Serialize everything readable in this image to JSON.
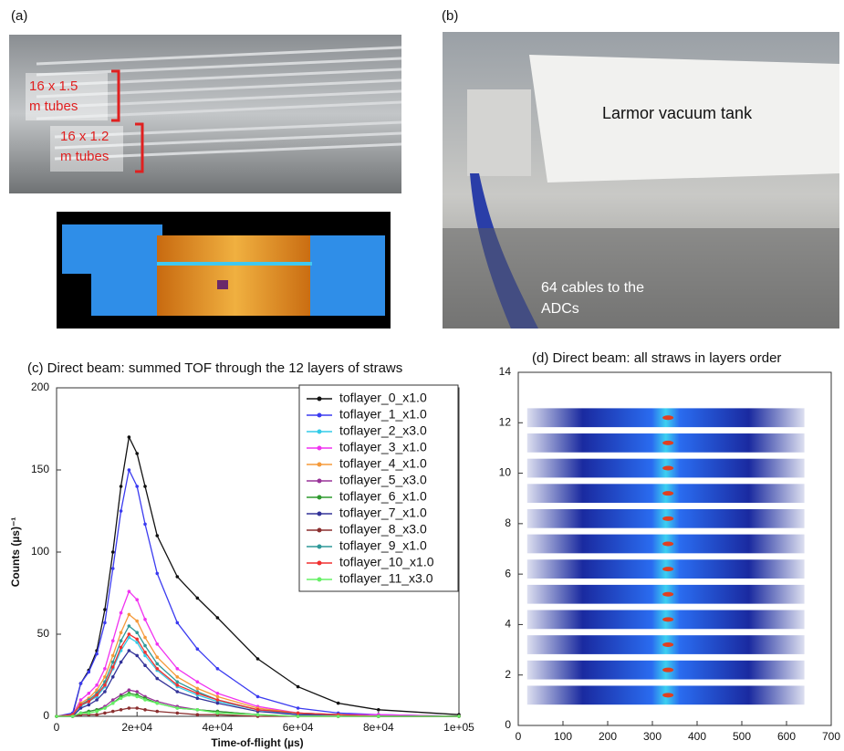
{
  "panel_a": {
    "label": "(a)",
    "upper_tubes": [
      "16 x 1.5",
      "m tubes"
    ],
    "lower_tubes": [
      "16 x 1.2",
      "m tubes"
    ]
  },
  "panel_b": {
    "label": "(b)",
    "tank": "Larmor vacuum tank",
    "cables": [
      "64 cables to the",
      "ADCs"
    ]
  },
  "chart_data": [
    {
      "type": "line",
      "title": "(c) Direct beam: summed TOF through the 12 layers of straws",
      "x_label": "Time-of-flight (µs)",
      "y_label": "Counts (µs)⁻¹",
      "x": [
        0,
        4000,
        6000,
        8000,
        10000,
        12000,
        14000,
        16000,
        18000,
        20000,
        22000,
        25000,
        30000,
        35000,
        40000,
        50000,
        60000,
        70000,
        80000,
        100000
      ],
      "xlim": [
        0,
        100000
      ],
      "xticks": [
        0,
        {
          "value": 20000,
          "label": "2e+04"
        },
        {
          "value": 40000,
          "label": "4e+04"
        },
        {
          "value": 60000,
          "label": "6e+04"
        },
        {
          "value": 80000,
          "label": "8e+04"
        },
        {
          "value": 100000,
          "label": "1e+05"
        }
      ],
      "ylim": [
        0,
        200
      ],
      "yticks": [
        0,
        50,
        100,
        150,
        200
      ],
      "series": [
        {
          "name": "toflayer_0_x1.0",
          "color": "#111111",
          "values": [
            0,
            1,
            20,
            28,
            40,
            65,
            100,
            140,
            170,
            160,
            140,
            110,
            85,
            72,
            60,
            35,
            18,
            8,
            4,
            1
          ]
        },
        {
          "name": "toflayer_1_x1.0",
          "color": "#3b3bf0",
          "values": [
            0,
            2,
            20,
            27,
            38,
            57,
            90,
            125,
            150,
            140,
            117,
            87,
            57,
            41,
            29,
            12,
            5,
            2,
            1,
            0
          ]
        },
        {
          "name": "toflayer_2_x3.0",
          "color": "#33cce8",
          "values": [
            0,
            0,
            6,
            9,
            12,
            18,
            29,
            40,
            48,
            45,
            37,
            28,
            18,
            13,
            9,
            4,
            1,
            1,
            0,
            0
          ]
        },
        {
          "name": "toflayer_3_x1.0",
          "color": "#f032f0",
          "values": [
            0,
            1,
            10,
            14,
            19,
            29,
            46,
            63,
            76,
            71,
            59,
            44,
            29,
            21,
            14,
            6,
            2,
            1,
            1,
            0
          ]
        },
        {
          "name": "toflayer_4_x1.0",
          "color": "#f59a3a",
          "values": [
            0,
            1,
            8,
            11,
            16,
            24,
            37,
            51,
            62,
            58,
            48,
            36,
            24,
            17,
            12,
            5,
            2,
            1,
            0,
            0
          ]
        },
        {
          "name": "toflayer_5_x3.0",
          "color": "#993399",
          "values": [
            0,
            0,
            2,
            3,
            4,
            6,
            10,
            13,
            16,
            15,
            12,
            9,
            6,
            4,
            3,
            1,
            0,
            0,
            0,
            0
          ]
        },
        {
          "name": "toflayer_6_x1.0",
          "color": "#2f9a2f",
          "values": [
            0,
            0,
            2,
            3,
            4,
            5,
            8,
            12,
            14,
            13,
            11,
            8,
            5,
            4,
            3,
            1,
            0,
            0,
            0,
            0
          ]
        },
        {
          "name": "toflayer_7_x1.0",
          "color": "#333399",
          "values": [
            0,
            0,
            5,
            7,
            10,
            15,
            24,
            33,
            40,
            37,
            31,
            23,
            15,
            11,
            8,
            3,
            1,
            1,
            0,
            0
          ]
        },
        {
          "name": "toflayer_8_x3.0",
          "color": "#8b2f2f",
          "values": [
            0,
            0,
            1,
            1,
            1,
            2,
            3,
            4,
            5,
            5,
            4,
            3,
            2,
            1,
            1,
            0,
            0,
            0,
            0,
            0
          ]
        },
        {
          "name": "toflayer_9_x1.0",
          "color": "#2f9999",
          "values": [
            0,
            1,
            7,
            10,
            14,
            21,
            33,
            46,
            55,
            51,
            43,
            32,
            21,
            15,
            10,
            4,
            2,
            1,
            0,
            0
          ]
        },
        {
          "name": "toflayer_10_x1.0",
          "color": "#f03030",
          "values": [
            0,
            1,
            7,
            9,
            13,
            19,
            30,
            42,
            50,
            47,
            39,
            29,
            19,
            14,
            10,
            4,
            2,
            1,
            0,
            0
          ]
        },
        {
          "name": "toflayer_11_x3.0",
          "color": "#66f066",
          "values": [
            0,
            0,
            2,
            2,
            3,
            5,
            8,
            11,
            13,
            12,
            10,
            8,
            5,
            4,
            2,
            1,
            0,
            0,
            0,
            0
          ]
        }
      ]
    },
    {
      "type": "heatmap",
      "title": "(d) Direct beam: all straws in layers order",
      "xlim": [
        0,
        700
      ],
      "xticks": [
        0,
        100,
        200,
        300,
        400,
        500,
        600,
        700
      ],
      "ylim": [
        0,
        14
      ],
      "yticks": [
        0,
        2,
        4,
        6,
        8,
        10,
        12,
        14
      ]
    }
  ]
}
